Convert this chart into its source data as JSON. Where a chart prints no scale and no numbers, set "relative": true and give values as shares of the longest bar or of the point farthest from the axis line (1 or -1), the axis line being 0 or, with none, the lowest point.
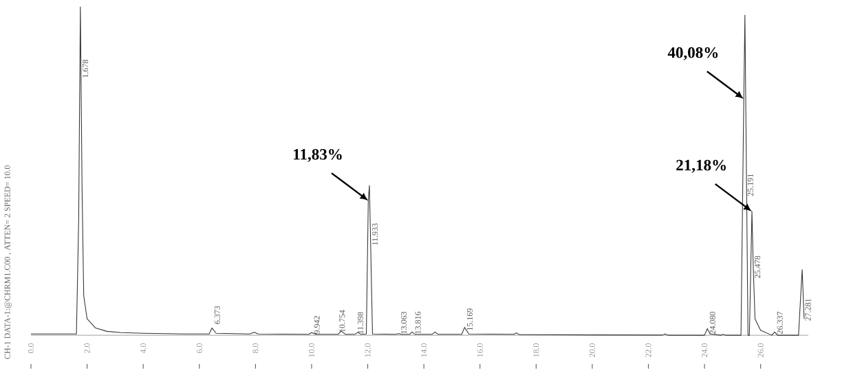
{
  "chart_data": {
    "type": "line",
    "relative": true,
    "color": "#333333",
    "line_style": "solid",
    "marker": "none",
    "grid": false,
    "tick_labels": "x",
    "x": [
      0,
      1.62,
      1.7,
      1.76,
      1.82,
      1.88,
      2.0,
      2.3,
      2.7,
      3.2,
      4.0,
      5.5,
      6.35,
      6.45,
      6.6,
      7.8,
      7.95,
      8.1,
      9.9,
      10.0,
      10.15,
      10.95,
      11.05,
      11.2,
      11.55,
      11.65,
      11.75,
      11.95,
      12.02,
      12.06,
      12.17,
      13.0,
      13.1,
      13.2,
      13.5,
      13.58,
      13.68,
      14.3,
      14.4,
      14.5,
      15.35,
      15.45,
      15.6,
      17.2,
      17.3,
      17.4,
      20,
      22.5,
      22.6,
      22.7,
      24.0,
      24.1,
      24.2,
      24.6,
      24.65,
      24.75,
      25.3,
      25.4,
      25.44,
      25.55,
      25.6,
      25.69,
      25.74,
      25.8,
      26.0,
      26.4,
      26.5,
      26.6,
      27.35,
      27.48,
      27.55
    ],
    "values": [
      0.004,
      0.004,
      0.35,
      1.0,
      0.45,
      0.12,
      0.05,
      0.022,
      0.012,
      0.008,
      0.006,
      0.004,
      0.004,
      0.022,
      0.006,
      0.004,
      0.009,
      0.004,
      0.003,
      0.008,
      0.003,
      0.003,
      0.013,
      0.003,
      0.003,
      0.009,
      0.003,
      0.004,
      0.41,
      0.456,
      0.004,
      0.003,
      0.005,
      0.003,
      0.003,
      0.01,
      0.003,
      0.003,
      0.01,
      0.003,
      0.003,
      0.024,
      0.004,
      0.003,
      0.007,
      0.002,
      0.001,
      0.0005,
      0.004,
      0.0,
      0.0,
      0.02,
      0.004,
      0.0,
      0.003,
      0.0,
      0.0,
      0.72,
      0.975,
      0.0,
      0.0,
      0.377,
      0.2,
      0.05,
      0.015,
      0.0,
      0.01,
      0.0,
      0.0,
      0.2,
      0.05
    ],
    "xlim": [
      0,
      27.7
    ],
    "xticks": [
      {
        "value": 0,
        "label": "0.0"
      },
      {
        "value": 2,
        "label": "2.0"
      },
      {
        "value": 4,
        "label": "4.0"
      },
      {
        "value": 6,
        "label": "6.0"
      },
      {
        "value": 8,
        "label": "8.0"
      },
      {
        "value": 10,
        "label": "10.0"
      },
      {
        "value": 12,
        "label": "12.0"
      },
      {
        "value": 14,
        "label": "14.0"
      },
      {
        "value": 16,
        "label": "16.0"
      },
      {
        "value": 18,
        "label": "18.0"
      },
      {
        "value": 20,
        "label": "20.0"
      },
      {
        "value": 22,
        "label": "22.0"
      },
      {
        "value": 24,
        "label": "24.0"
      },
      {
        "value": 26,
        "label": "26.0"
      }
    ],
    "annotations": [
      "CH-1    DATA-1:@CHRM1.C00   ,   ATTEN= 2    SPEED= 10.0",
      {
        "text": "1.678",
        "x": 1.8,
        "y": 0.78
      },
      {
        "text": "6.373",
        "x": 6.5,
        "y": 0.03
      },
      {
        "text": "9.942",
        "x": 10.05,
        "y": 0.0
      },
      {
        "text": "10.754",
        "x": 10.95,
        "y": 0.005
      },
      {
        "text": "11.398",
        "x": 11.6,
        "y": 0.0
      },
      {
        "text": "11.933",
        "x": 12.12,
        "y": 0.27
      },
      {
        "text": "13.063",
        "x": 13.15,
        "y": 0.0
      },
      {
        "text": "13.816",
        "x": 13.65,
        "y": 0.0
      },
      {
        "text": "15.169",
        "x": 15.5,
        "y": 0.01
      },
      {
        "text": "24.080",
        "x": 24.15,
        "y": 0.0
      },
      {
        "text": "25.191",
        "x": 25.5,
        "y": 0.42
      },
      {
        "text": "25.478",
        "x": 25.75,
        "y": 0.17
      },
      {
        "text": "26.337",
        "x": 26.55,
        "y": 0.0
      },
      {
        "text": "27.281",
        "x": 27.55,
        "y": 0.04
      },
      {
        "text": "11,83%",
        "x": 12.02,
        "y": 0.41
      },
      {
        "text": "40,08%",
        "x": 25.4,
        "y": 0.72
      },
      {
        "text": "21,18%",
        "x": 25.69,
        "y": 0.377
      }
    ]
  }
}
